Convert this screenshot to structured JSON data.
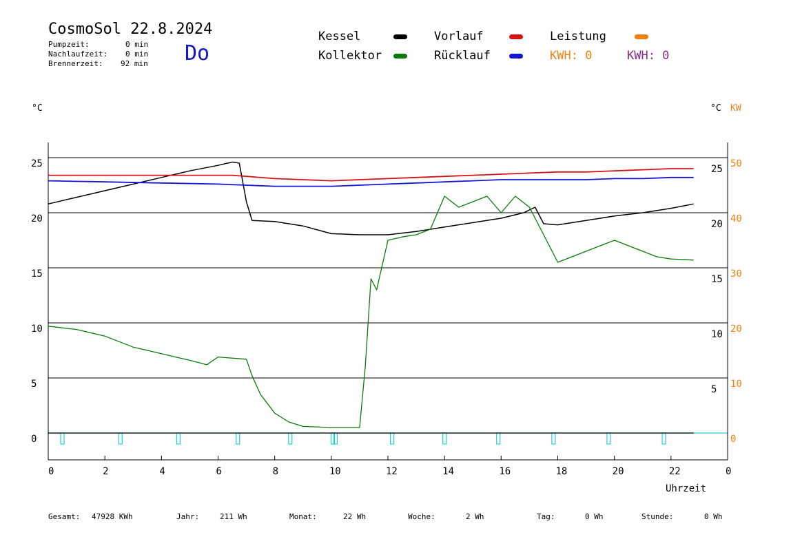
{
  "header": {
    "title": "CosmoSol 22.8.2024",
    "day": "Do",
    "stats": [
      {
        "label": "Pumpzeit:",
        "value": "0 min"
      },
      {
        "label": "Nachlaufzeit:",
        "value": "0 min"
      },
      {
        "label": "Brennerzeit:",
        "value": "92 min"
      }
    ]
  },
  "legend": {
    "kessel": "Kessel",
    "kollektor": "Kollektor",
    "vorlauf": "Vorlauf",
    "ruecklauf": "Rücklauf",
    "leistung": "Leistung",
    "kwh1": "KWH: 0",
    "kwh2": "KWH: 0"
  },
  "colors": {
    "kessel": "#000000",
    "kollektor": "#0a7a0a",
    "vorlauf": "#d41414",
    "ruecklauf": "#1414d4",
    "leistung": "#f08010",
    "kwh2": "#8a2a8a",
    "pump": "#20d0d0"
  },
  "units": {
    "left": "°C",
    "right_c": "°C",
    "right_kw": "KW",
    "x": "Uhrzeit"
  },
  "footer": [
    {
      "label": "Gesamt:",
      "value": "47928 KWh"
    },
    {
      "label": "Jahr:",
      "value": "211 Wh"
    },
    {
      "label": "Monat:",
      "value": "22 Wh"
    },
    {
      "label": "Woche:",
      "value": "2 Wh"
    },
    {
      "label": "Tag:",
      "value": "0 Wh"
    },
    {
      "label": "Stunde:",
      "value": "0 Wh"
    }
  ],
  "chart_data": {
    "type": "line",
    "xlabel": "Uhrzeit",
    "ylabel": "°C",
    "xlim": [
      0,
      24
    ],
    "ylim": [
      -2,
      26.5
    ],
    "x_ticks": [
      "0",
      "2",
      "4",
      "6",
      "8",
      "10",
      "12",
      "14",
      "16",
      "18",
      "20",
      "22",
      "0"
    ],
    "y_ticks_left": [
      "0",
      "5",
      "10",
      "15",
      "20",
      "25"
    ],
    "y_ticks_right_c": [
      "5",
      "10",
      "15",
      "20",
      "25"
    ],
    "y_ticks_right_kw": [
      "0",
      "10",
      "20",
      "30",
      "40",
      "50"
    ],
    "grid": true,
    "series": [
      {
        "name": "Kessel",
        "x": [
          0,
          1,
          2,
          3,
          4,
          5,
          6,
          6.5,
          6.75,
          7,
          7.2,
          8,
          9,
          10,
          11,
          12,
          13,
          14,
          15,
          16,
          16.8,
          17.2,
          17.5,
          18,
          19,
          20,
          21,
          22,
          22.8
        ],
        "y": [
          20.8,
          21.4,
          22,
          22.6,
          23.2,
          23.8,
          24.3,
          24.6,
          24.5,
          21,
          19.3,
          19.2,
          18.8,
          18.1,
          18,
          18,
          18.3,
          18.7,
          19.1,
          19.5,
          20,
          20.5,
          19,
          18.9,
          19.3,
          19.7,
          20,
          20.4,
          20.8
        ]
      },
      {
        "name": "Kollektor",
        "x": [
          0,
          1,
          2,
          3,
          4,
          5,
          5.6,
          6,
          7,
          7.2,
          7.5,
          8,
          8.5,
          9,
          10,
          11,
          11.2,
          11.4,
          11.6,
          12,
          12.5,
          13,
          13.5,
          14,
          14.5,
          15,
          15.5,
          16,
          16.5,
          17,
          17.5,
          18,
          18.5,
          19,
          19.5,
          20,
          20.5,
          21,
          21.5,
          22,
          22.8
        ],
        "y": [
          9.7,
          9.4,
          8.8,
          7.8,
          7.2,
          6.6,
          6.2,
          6.9,
          6.7,
          5.2,
          3.5,
          1.8,
          1,
          0.6,
          0.5,
          0.5,
          6,
          14,
          13,
          17.5,
          17.8,
          18,
          18.5,
          21.5,
          20.5,
          21,
          21.5,
          20,
          21.5,
          20.5,
          18,
          15.5,
          16,
          16.5,
          17,
          17.5,
          17,
          16.5,
          16,
          15.8,
          15.7
        ]
      },
      {
        "name": "Vorlauf",
        "x": [
          0,
          6.5,
          7,
          8,
          9,
          10,
          11,
          12,
          13,
          14,
          15,
          16,
          17,
          18,
          19,
          20,
          21,
          22,
          22.8
        ],
        "y": [
          23.4,
          23.4,
          23.3,
          23.1,
          23,
          22.9,
          23,
          23.1,
          23.2,
          23.3,
          23.4,
          23.5,
          23.6,
          23.7,
          23.7,
          23.8,
          23.9,
          24,
          24
        ]
      },
      {
        "name": "Rücklauf",
        "x": [
          0,
          2,
          4,
          6,
          7,
          8,
          9,
          10,
          11,
          12,
          13,
          14,
          15,
          16,
          17,
          18,
          19,
          20,
          21,
          22,
          22.8
        ],
        "y": [
          22.9,
          22.8,
          22.7,
          22.6,
          22.5,
          22.4,
          22.4,
          22.4,
          22.5,
          22.6,
          22.7,
          22.8,
          22.9,
          23,
          23,
          23,
          23,
          23.1,
          23.1,
          23.2,
          23.2
        ]
      },
      {
        "name": "Leistung",
        "x": [
          0,
          22.8
        ],
        "y": [
          0,
          0
        ]
      }
    ],
    "pump_marks_x": [
      0.5,
      2.55,
      4.6,
      6.7,
      8.55,
      10.05,
      10.15,
      12.15,
      14,
      15.9,
      17.85,
      19.8,
      21.75
    ]
  }
}
